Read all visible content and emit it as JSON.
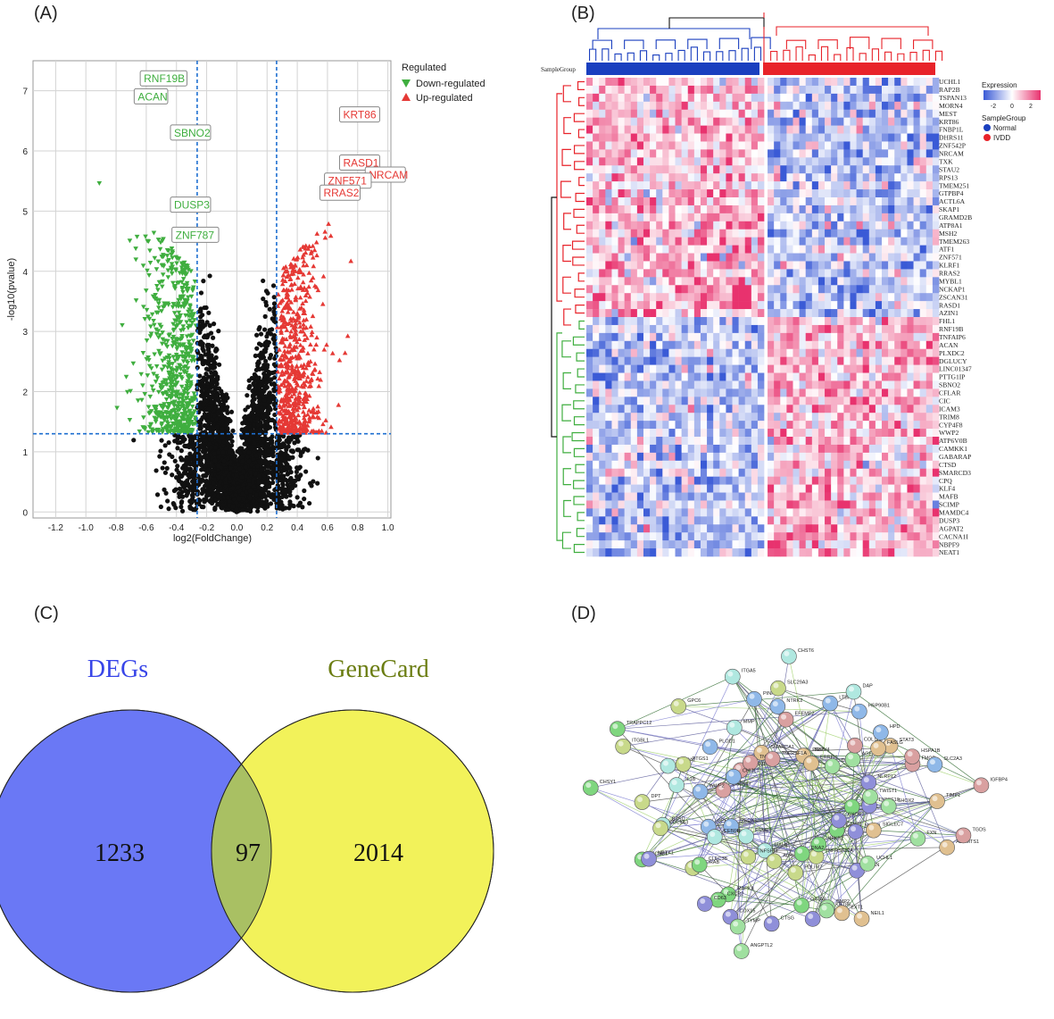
{
  "panels": {
    "a": {
      "label": "(A)"
    },
    "b": {
      "label": "(B)"
    },
    "c": {
      "label": "(C)"
    },
    "d": {
      "label": "(D)"
    }
  },
  "volcano": {
    "type": "scatter",
    "xlabel": "log2(FoldChange)",
    "ylabel": "-log10(pvalue)",
    "xlim": [
      -1.35,
      1.02
    ],
    "ylim": [
      -0.1,
      7.5
    ],
    "xticks": [
      -1.2,
      -1.0,
      -0.8,
      -0.6,
      -0.4,
      -0.2,
      0.0,
      0.2,
      0.4,
      0.6,
      0.8,
      1.0
    ],
    "xtick_labels": [
      "-1.2",
      "-1.0",
      "-0.8",
      "-0.6",
      "-0.4",
      "-0.2",
      "0.0",
      "0.2",
      "0.4",
      "0.6",
      "0.8",
      "1.0"
    ],
    "yticks": [
      0,
      1,
      2,
      3,
      4,
      5,
      6,
      7
    ],
    "ytick_labels": [
      "0",
      "1",
      "2",
      "3",
      "4",
      "5",
      "6",
      "7"
    ],
    "fc_cutoff": 0.263,
    "p_cutoff": 1.3,
    "legend_title": "Regulated",
    "legend_down": "Down-regulated",
    "legend_up": "Up-regulated",
    "colors": {
      "down": "#3fae3f",
      "up": "#e53935",
      "ns": "#111111",
      "cutoff": "#1e6fd0"
    },
    "down_labels": [
      {
        "text": "RNF19B",
        "x": -0.64,
        "y": 7.2
      },
      {
        "text": "ACAN",
        "x": -0.68,
        "y": 6.9
      },
      {
        "text": "SBNO2",
        "x": -0.44,
        "y": 6.3
      },
      {
        "text": "DUSP3",
        "x": -0.44,
        "y": 5.1
      },
      {
        "text": "ZNF787",
        "x": -0.43,
        "y": 4.6
      }
    ],
    "up_labels": [
      {
        "text": "KRT86",
        "x": 0.68,
        "y": 6.6
      },
      {
        "text": "RASD1",
        "x": 0.68,
        "y": 5.8
      },
      {
        "text": "NRCAM",
        "x": 0.85,
        "y": 5.6
      },
      {
        "text": "ZNF571",
        "x": 0.58,
        "y": 5.5
      },
      {
        "text": "RRAS2",
        "x": 0.55,
        "y": 5.3
      }
    ]
  },
  "heatmap": {
    "sample_group_label": "SampleGroup",
    "legend_expression": "Expression",
    "legend_ticks": [
      "-2",
      "0",
      "2"
    ],
    "legend_group_title": "SampleGroup",
    "group_normal": "Normal",
    "group_ivdd": "IVDD",
    "colors": {
      "normal": "#1a3fbf",
      "ivdd": "#e8232a",
      "low": "#3a5ad6",
      "mid": "#ffffff",
      "high": "#e8326e"
    },
    "genes": [
      "UCHL1",
      "RAP2B",
      "TSPAN13",
      "MORN4",
      "MEST",
      "KRT86",
      "FNBP1L",
      "DHRS11",
      "ZNF542P",
      "NRCAM",
      "TXK",
      "STAU2",
      "RPS13",
      "TMEM251",
      "GTPBP4",
      "ACTL6A",
      "SKAP1",
      "GRAMD2B",
      "ATP8A1",
      "MSH2",
      "TMEM263",
      "ATF1",
      "ZNF571",
      "KLRF1",
      "RRAS2",
      "MYBL1",
      "NCKAP1",
      "ZSCAN31",
      "RASD1",
      "AZIN1",
      "FHL1",
      "RNF19B",
      "TNFAIP6",
      "ACAN",
      "PLXDC2",
      "DGLUCY",
      "LINC01347",
      "PTTG1IP",
      "SBNO2",
      "CFLAR",
      "CIC",
      "ICAM3",
      "TRIM8",
      "CYP4F8",
      "WWP2",
      "ATP6V0B",
      "CAMKK1",
      "GABARAP",
      "CTSD",
      "SMARCD3",
      "CPQ",
      "KLF4",
      "MAFB",
      "SCIMP",
      "MAMDC4",
      "DUSP3",
      "AGPAT2",
      "CACNA1I",
      "NBPF9",
      "NEAT1"
    ]
  },
  "venn": {
    "left_title": "DEGs",
    "right_title": "GeneCard",
    "left_only": "1233",
    "overlap": "97",
    "right_only": "2014",
    "colors": {
      "left": "#6a78f5",
      "right": "#f2f25a",
      "overlap": "#a9c063",
      "left_title": "#3845e8",
      "right_title": "#6b7d12"
    }
  },
  "network": {
    "nodes": [
      {
        "label": "SMM1"
      },
      {
        "label": "GPER1"
      },
      {
        "label": "TRPV4"
      },
      {
        "label": "TNFRSF12A"
      },
      {
        "label": "GSDMD"
      },
      {
        "label": "NLRP12"
      },
      {
        "label": "SIAH1"
      },
      {
        "label": "SMARCA1"
      },
      {
        "label": "CANT1"
      },
      {
        "label": "MEOX1"
      },
      {
        "label": "DDIT4"
      },
      {
        "label": "PDLIM7"
      },
      {
        "label": "ADAM8"
      },
      {
        "label": "TNFSF10"
      },
      {
        "label": "PSMB9"
      },
      {
        "label": "PAK6"
      },
      {
        "label": "NFKB2"
      },
      {
        "label": "WWP2"
      },
      {
        "label": "AGER"
      },
      {
        "label": "ALPL"
      },
      {
        "label": "TNFAIP6"
      },
      {
        "label": "CXCR1"
      },
      {
        "label": "CEBPB"
      },
      {
        "label": "ERRFI1"
      },
      {
        "label": "DNA2"
      },
      {
        "label": "CHI3L1"
      },
      {
        "label": "TWIST1"
      },
      {
        "label": "TNFSF11"
      },
      {
        "label": "TNFRSF1A"
      },
      {
        "label": "NLRP3"
      },
      {
        "label": "CTSD"
      },
      {
        "label": "STAT3"
      },
      {
        "label": "GATA3"
      },
      {
        "label": "PLOD1"
      },
      {
        "label": "SHOX2"
      },
      {
        "label": "GORAB"
      },
      {
        "label": "EFEMP2"
      },
      {
        "label": "ACAN"
      },
      {
        "label": "IL1B"
      },
      {
        "label": "FASLG"
      },
      {
        "label": "MAPK8"
      },
      {
        "label": "PINK1"
      },
      {
        "label": "FXN"
      },
      {
        "label": "COL9A3"
      },
      {
        "label": "COL1A2"
      },
      {
        "label": "CD74"
      },
      {
        "label": "COL9A2"
      },
      {
        "label": "TIMP1"
      },
      {
        "label": "CXCR2"
      },
      {
        "label": "NTRK2"
      },
      {
        "label": "UCHL1"
      },
      {
        "label": "DPT"
      },
      {
        "label": "FMOD"
      },
      {
        "label": "CTSG"
      },
      {
        "label": "MMP"
      },
      {
        "label": "SIGLEC7"
      },
      {
        "label": "CLEC3B"
      },
      {
        "label": "LTBP"
      },
      {
        "label": "BMP2"
      },
      {
        "label": "PTGS1"
      },
      {
        "label": "HSPA1B"
      },
      {
        "label": "COX15"
      },
      {
        "label": "ITGA5"
      },
      {
        "label": "ADAMTS1"
      },
      {
        "label": "CCNB1"
      },
      {
        "label": "HSP90B1"
      },
      {
        "label": "KRT86"
      },
      {
        "label": "ITGBL1"
      },
      {
        "label": "IGFBP4"
      },
      {
        "label": "CD63"
      },
      {
        "label": "CHST6"
      },
      {
        "label": "EXT1"
      },
      {
        "label": "CHSY1"
      },
      {
        "label": "HPD"
      },
      {
        "label": "ANGPTL2"
      },
      {
        "label": "GPC6"
      },
      {
        "label": "TGDS"
      },
      {
        "label": "NPTX1"
      },
      {
        "label": "DAP"
      },
      {
        "label": "NEIL1"
      },
      {
        "label": "TRAPPC12"
      },
      {
        "label": "SLC2A3"
      },
      {
        "label": "TYMP"
      },
      {
        "label": "SLC29A3"
      }
    ]
  }
}
